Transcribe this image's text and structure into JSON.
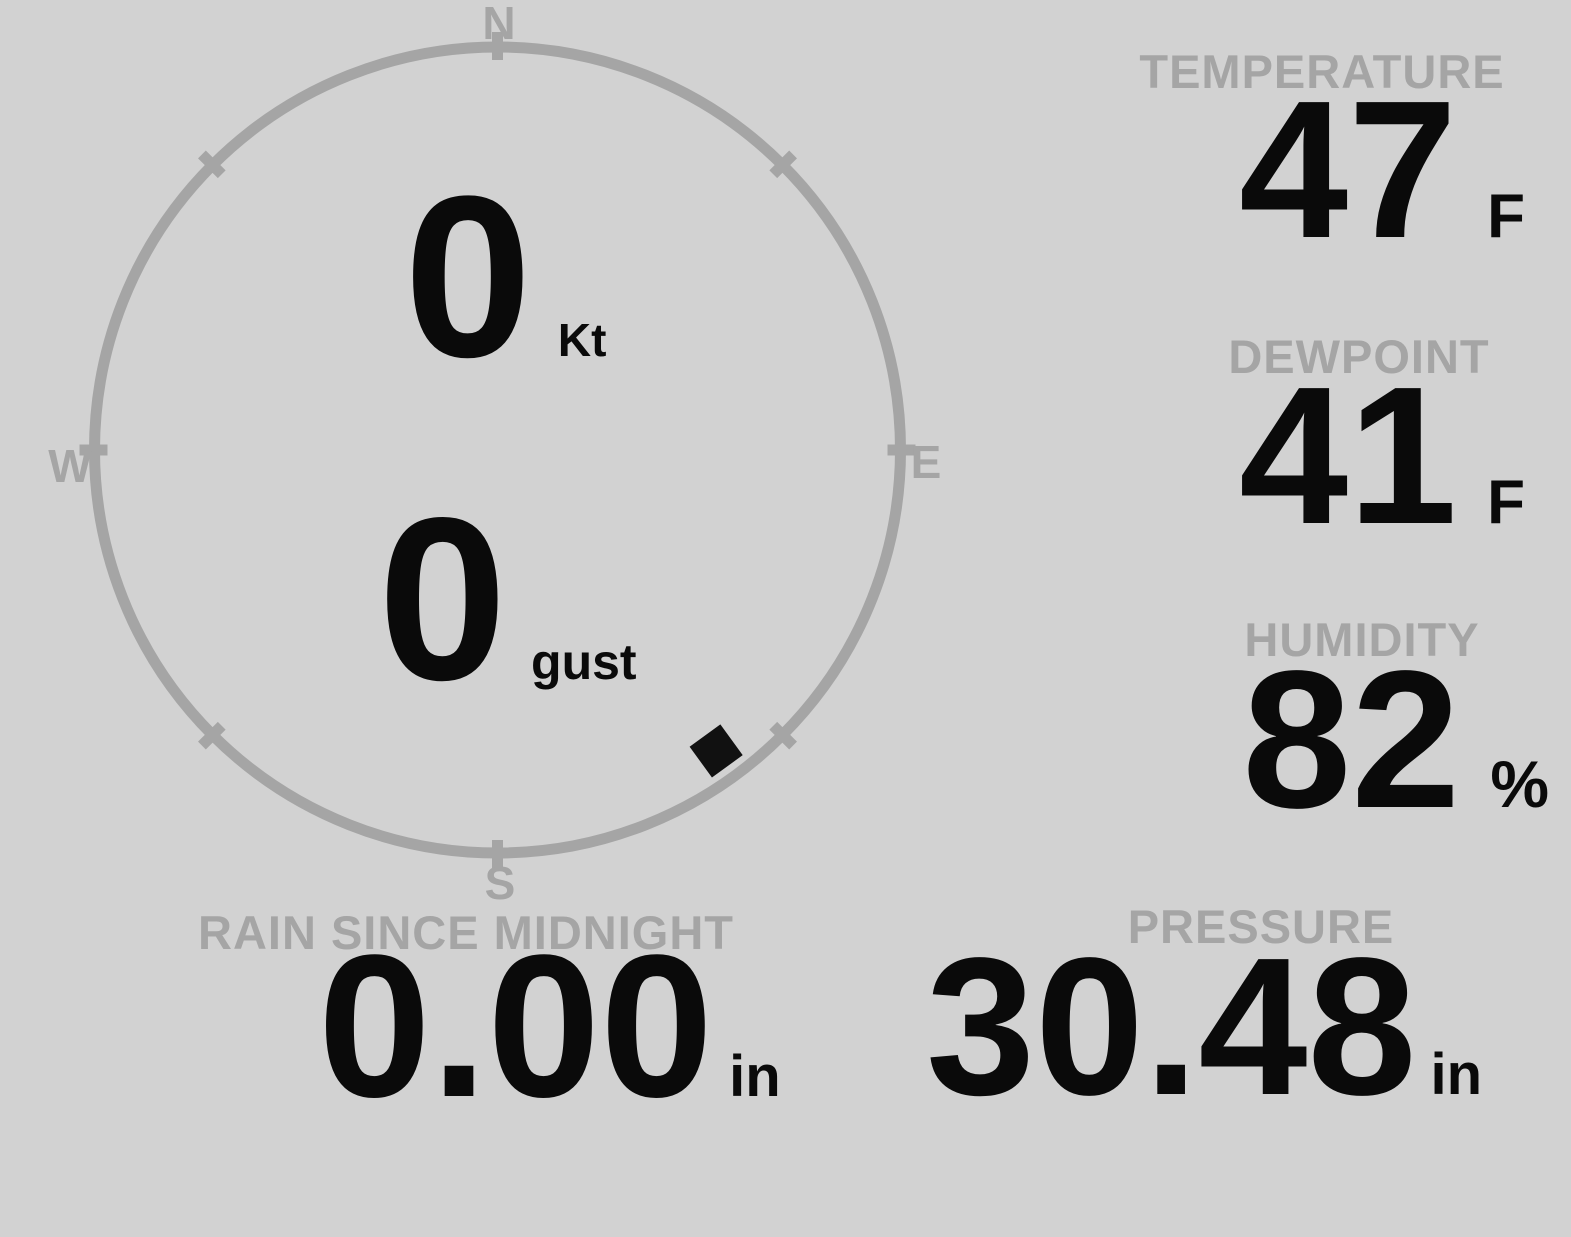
{
  "colors": {
    "background": "#d2d2d2",
    "muted_gray": "#a5a5a5",
    "value_black": "#0a0a0a"
  },
  "compass": {
    "cardinal": {
      "n": "N",
      "e": "E",
      "s": "S",
      "w": "W"
    },
    "speed": {
      "value": "0",
      "unit": "Kt"
    },
    "gust": {
      "value": "0",
      "unit": "gust"
    },
    "direction_degrees": 144
  },
  "metrics": {
    "temperature": {
      "label": "TEMPERATURE",
      "value": "47",
      "unit": "F"
    },
    "dewpoint": {
      "label": "DEWPOINT",
      "value": "41",
      "unit": "F"
    },
    "humidity": {
      "label": "HUMIDITY",
      "value": "82",
      "unit": "%"
    },
    "rain": {
      "label": "RAIN SINCE MIDNIGHT",
      "value": "0.00",
      "unit": "in"
    },
    "pressure": {
      "label": "PRESSURE",
      "value": "30.48",
      "unit": "in"
    }
  }
}
